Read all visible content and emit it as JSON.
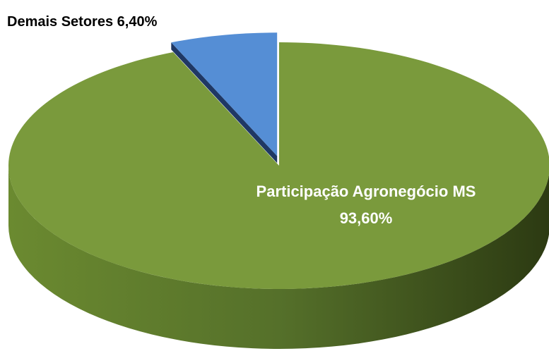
{
  "chart_data": {
    "type": "pie",
    "categories": [
      "Participação Agronegócio MS",
      "Demais Setores"
    ],
    "values": [
      93.6,
      6.4
    ],
    "value_labels": [
      "93,60%",
      "6,40%"
    ],
    "colors": [
      "#7a9a3c",
      "#558ed5"
    ]
  }
}
